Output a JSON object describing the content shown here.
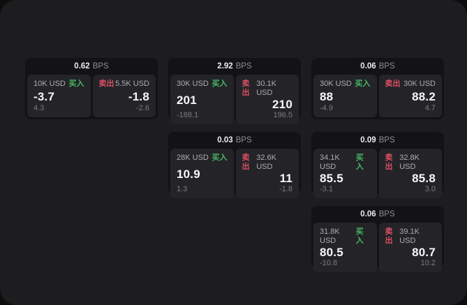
{
  "labels": {
    "bps_unit": "BPS",
    "buy": "买入",
    "sell": "卖出"
  },
  "colors": {
    "outer_background": "#0d0d0e",
    "surface": "#1d1d1f",
    "card_background": "#131315",
    "panel_background": "#242428",
    "buy_green": "#46b964",
    "sell_red": "#d94f62",
    "primary_text": "#f7f7f8",
    "muted_text": "#7b7b80"
  },
  "cards": [
    {
      "bps": "0.62",
      "buy": {
        "amount": "10K USD",
        "price": "-3.7",
        "change": "4.3"
      },
      "sell": {
        "amount": "5.5K USD",
        "price": "-1.8",
        "change": "-2.6"
      }
    },
    {
      "bps": "2.92",
      "buy": {
        "amount": "30K USD",
        "price": "201",
        "change": "-188.1"
      },
      "sell": {
        "amount": "30.1K USD",
        "price": "210",
        "change": "196.5"
      }
    },
    {
      "bps": "0.06",
      "buy": {
        "amount": "30K USD",
        "price": "88",
        "change": "-4.9"
      },
      "sell": {
        "amount": "30K USD",
        "price": "88.2",
        "change": "4.7"
      }
    },
    {
      "bps": "0.03",
      "buy": {
        "amount": "28K USD",
        "price": "10.9",
        "change": "1.3"
      },
      "sell": {
        "amount": "32.6K USD",
        "price": "11",
        "change": "-1.8"
      }
    },
    {
      "bps": "0.09",
      "buy": {
        "amount": "34.1K USD",
        "price": "85.5",
        "change": "-3.1"
      },
      "sell": {
        "amount": "32.8K USD",
        "price": "85.8",
        "change": "3.0"
      }
    },
    {
      "bps": "0.06",
      "buy": {
        "amount": "31.8K USD",
        "price": "80.5",
        "change": "-10.8"
      },
      "sell": {
        "amount": "39.1K USD",
        "price": "80.7",
        "change": "10.2"
      }
    }
  ]
}
